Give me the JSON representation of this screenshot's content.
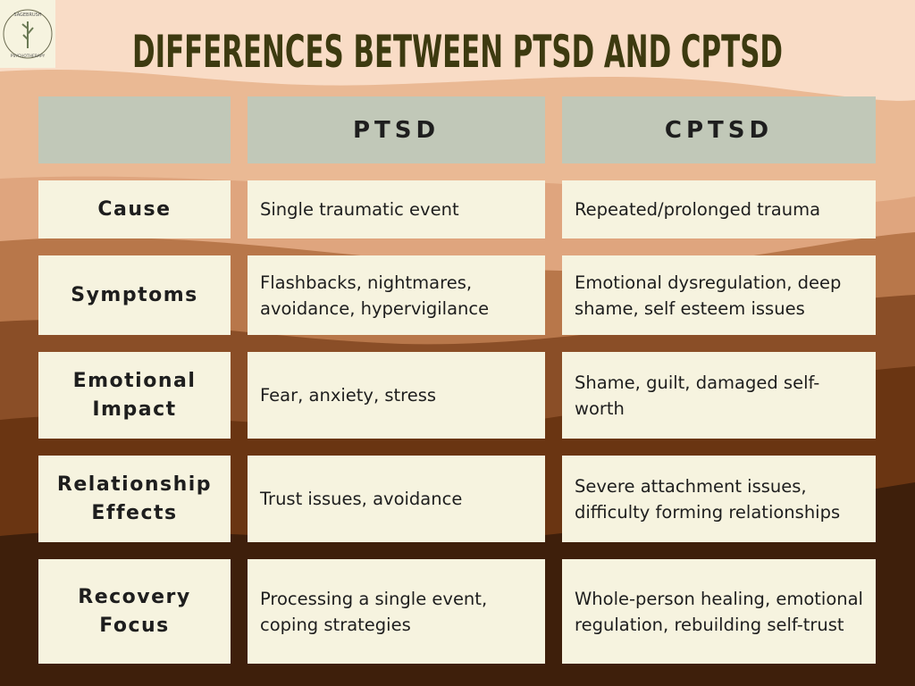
{
  "logo": {
    "top": "SAGEBRUSH",
    "bottom": "PSYCHOTHERAPY"
  },
  "title": "DIFFERENCES BETWEEN PTSD AND CPTSD",
  "table": {
    "header": [
      "",
      "PTSD",
      "CPTSD"
    ],
    "rows": [
      [
        "Cause",
        "Single traumatic event",
        "Repeated/prolonged trauma"
      ],
      [
        "Symptoms",
        "Flashbacks, nightmares, avoidance, hypervigilance",
        "Emotional dysregulation, deep shame, self esteem issues"
      ],
      [
        "Emotional Impact",
        "Fear, anxiety, stress",
        "Shame, guilt, damaged self-worth"
      ],
      [
        "Relationship Effects",
        "Trust issues, avoidance",
        "Severe attachment issues, difficulty forming relationships"
      ],
      [
        "Recovery Focus",
        "Processing a single event, coping strategies",
        "Whole-person healing, emotional regulation, rebuilding self-trust"
      ]
    ]
  }
}
